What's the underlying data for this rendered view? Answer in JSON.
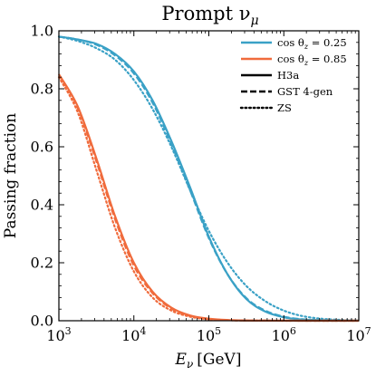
{
  "chart_data": {
    "type": "line",
    "title": "Prompt ν",
    "title_sub": "μ",
    "xlabel": "E",
    "xlabel_sub": "ν",
    "xlabel_unit": "[GeV]",
    "ylabel": "Passing fraction",
    "xscale": "log",
    "xlim": [
      1000,
      10000000
    ],
    "ylim": [
      0.0,
      1.0
    ],
    "grid": false,
    "legend_position": "top-right",
    "x_ticks": [
      {
        "value": 1000,
        "base": "10",
        "exp": "3"
      },
      {
        "value": 10000,
        "base": "10",
        "exp": "4"
      },
      {
        "value": 100000,
        "base": "10",
        "exp": "5"
      },
      {
        "value": 1000000,
        "base": "10",
        "exp": "6"
      },
      {
        "value": 10000000,
        "base": "10",
        "exp": "7"
      }
    ],
    "y_ticks": [
      {
        "value": 0.0,
        "label": "0.0"
      },
      {
        "value": 0.2,
        "label": "0.2"
      },
      {
        "value": 0.4,
        "label": "0.4"
      },
      {
        "value": 0.6,
        "label": "0.6"
      },
      {
        "value": 0.8,
        "label": "0.8"
      },
      {
        "value": 1.0,
        "label": "1.0"
      }
    ],
    "colors": {
      "cos_0_25": "#3aa1c6",
      "cos_0_85": "#f06b3c",
      "legend_black": "#000000"
    },
    "x": [
      1000,
      1778,
      3162,
      5623,
      10000,
      17783,
      31623,
      56234,
      100000,
      177828,
      316228,
      562341,
      1000000,
      1778279,
      3162278,
      5623413,
      10000000
    ],
    "series": [
      {
        "group": "cos θz = 0.25",
        "model": "H3a",
        "color": "#3aa1c6",
        "dash": "solid",
        "values": [
          0.98,
          0.97,
          0.955,
          0.92,
          0.86,
          0.76,
          0.62,
          0.46,
          0.29,
          0.16,
          0.075,
          0.032,
          0.012,
          0.004,
          0.0015,
          0.0005,
          0.0002
        ]
      },
      {
        "group": "cos θz = 0.25",
        "model": "GST 4-gen",
        "color": "#3aa1c6",
        "dash": "dashed",
        "values": [
          0.98,
          0.97,
          0.952,
          0.915,
          0.853,
          0.752,
          0.61,
          0.45,
          0.285,
          0.16,
          0.078,
          0.035,
          0.014,
          0.005,
          0.002,
          0.0007,
          0.0003
        ]
      },
      {
        "group": "cos θz = 0.25",
        "model": "ZS",
        "color": "#3aa1c6",
        "dash": "dotted",
        "values": [
          0.98,
          0.965,
          0.94,
          0.9,
          0.83,
          0.73,
          0.6,
          0.45,
          0.31,
          0.2,
          0.12,
          0.068,
          0.035,
          0.016,
          0.007,
          0.003,
          0.001
        ]
      },
      {
        "group": "cos θz = 0.85",
        "model": "H3a",
        "color": "#f06b3c",
        "dash": "solid",
        "values": [
          0.85,
          0.74,
          0.56,
          0.36,
          0.2,
          0.1,
          0.045,
          0.018,
          0.007,
          0.0025,
          0.001,
          0.0004,
          0.0002,
          0.0001,
          0.0,
          0.0,
          0.0
        ]
      },
      {
        "group": "cos θz = 0.85",
        "model": "GST 4-gen",
        "color": "#f06b3c",
        "dash": "dashed",
        "values": [
          0.85,
          0.735,
          0.55,
          0.35,
          0.19,
          0.095,
          0.042,
          0.017,
          0.006,
          0.002,
          0.0008,
          0.0003,
          0.0001,
          0.0,
          0.0,
          0.0,
          0.0
        ]
      },
      {
        "group": "cos θz = 0.85",
        "model": "ZS",
        "color": "#f06b3c",
        "dash": "dotted",
        "values": [
          0.84,
          0.72,
          0.52,
          0.32,
          0.17,
          0.08,
          0.035,
          0.014,
          0.005,
          0.0018,
          0.0007,
          0.0003,
          0.0001,
          0.0,
          0.0,
          0.0,
          0.0
        ]
      }
    ],
    "legend": [
      {
        "prefix": "cos θ",
        "sub": "z",
        "suffix": " = 0.25",
        "style": "solid",
        "color": "#3aa1c6"
      },
      {
        "prefix": "cos θ",
        "sub": "z",
        "suffix": " = 0.85",
        "style": "solid",
        "color": "#f06b3c"
      },
      {
        "label": "H3a",
        "style": "solid",
        "color": "#000000"
      },
      {
        "label": "GST 4-gen",
        "style": "dashed",
        "color": "#000000"
      },
      {
        "label": "ZS",
        "style": "dotted",
        "color": "#000000"
      }
    ]
  }
}
